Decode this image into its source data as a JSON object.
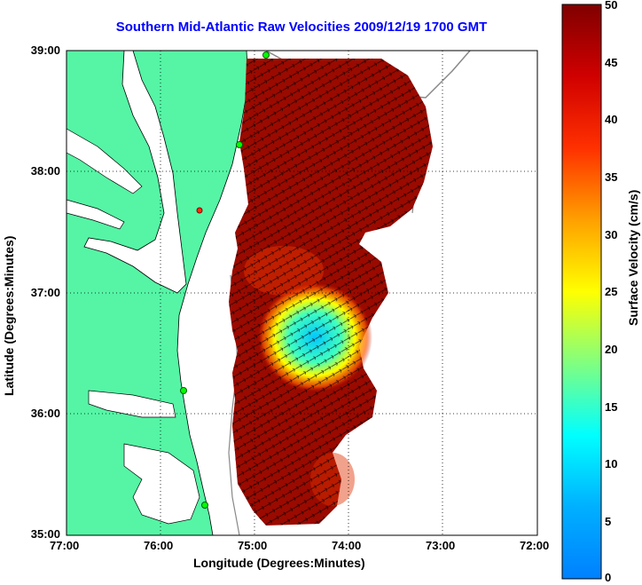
{
  "map": {
    "title": "Southern Mid-Atlantic Raw Velocities 2009/12/19 1700 GMT",
    "title_color": "#0000ff",
    "xlabel": "Longitude (Degrees:Minutes)",
    "ylabel": "Latitude (Degrees:Minutes)",
    "x_ticks": [
      "77:00",
      "76:00",
      "75:00",
      "74:00",
      "73:00",
      "72:00"
    ],
    "y_ticks": [
      "39:00",
      "38:00",
      "37:00",
      "36:00",
      "35:00"
    ],
    "land_color": "#55f5a5",
    "water_color": "#ffffff",
    "gridlines": "dotted"
  },
  "colorbar": {
    "label": "Surface Velocity (cm/s)",
    "ticks": [
      "50",
      "45",
      "40",
      "35",
      "30",
      "25",
      "20",
      "15",
      "10",
      "5",
      "0"
    ],
    "range_cm_s": [
      0,
      50
    ],
    "colormap": "jet"
  }
}
